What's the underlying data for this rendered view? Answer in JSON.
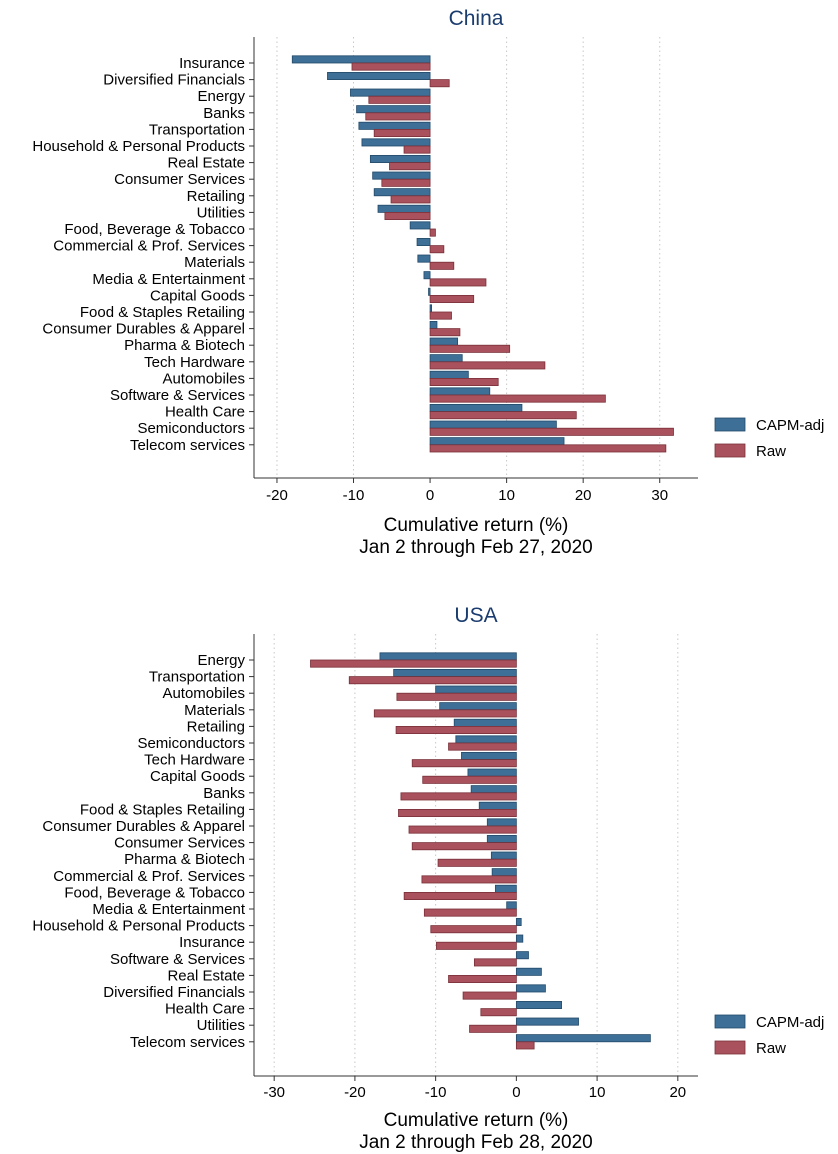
{
  "chart_data": [
    {
      "type": "bar",
      "orientation": "horizontal",
      "title": "China",
      "xlabel": "Cumulative return (%)",
      "subtitle": "Jan 2 through Feb 27, 2020",
      "xlim": [
        -23,
        35
      ],
      "xticks": [
        -20,
        -10,
        0,
        10,
        20,
        30
      ],
      "grid": "vertical dotted",
      "legend_position": "right",
      "colors": {
        "CAPM-adj": "#3d6f97",
        "Raw": "#a9525d"
      },
      "categories": [
        "Insurance",
        "Diversified Financials",
        "Energy",
        "Banks",
        "Transportation",
        "Household & Personal Products",
        "Real Estate",
        "Consumer Services",
        "Retailing",
        "Utilities",
        "Food, Beverage & Tobacco",
        "Commercial & Prof. Services",
        "Materials",
        "Media & Entertainment",
        "Capital Goods",
        "Food & Staples Retailing",
        "Consumer Durables & Apparel",
        "Pharma & Biotech",
        "Tech Hardware",
        "Automobiles",
        "Software & Services",
        "Health Care",
        "Semiconductors",
        "Telecom services"
      ],
      "series": [
        {
          "name": "CAPM-adj",
          "values": [
            -18.0,
            -13.4,
            -10.4,
            -9.6,
            -9.3,
            -8.9,
            -7.8,
            -7.5,
            -7.3,
            -6.8,
            -2.6,
            -1.7,
            -1.6,
            -0.8,
            -0.2,
            0.2,
            0.9,
            3.6,
            4.2,
            5.0,
            7.8,
            12.0,
            16.5,
            17.5
          ]
        },
        {
          "name": "Raw",
          "values": [
            -10.2,
            2.5,
            -8.0,
            -8.4,
            -7.3,
            -3.4,
            -5.3,
            -6.3,
            -5.1,
            -5.9,
            0.7,
            1.8,
            3.1,
            7.3,
            5.7,
            2.8,
            3.9,
            10.4,
            15.0,
            8.9,
            22.9,
            19.1,
            31.8,
            30.8
          ]
        }
      ]
    },
    {
      "type": "bar",
      "orientation": "horizontal",
      "title": "USA",
      "xlabel": "Cumulative return (%)",
      "subtitle": "Jan 2 through Feb 28, 2020",
      "xlim": [
        -32.5,
        22.5
      ],
      "xticks": [
        -30,
        -20,
        -10,
        0,
        10,
        20
      ],
      "grid": "vertical dotted",
      "legend_position": "right",
      "colors": {
        "CAPM-adj": "#3d6f97",
        "Raw": "#a9525d"
      },
      "categories": [
        "Energy",
        "Transportation",
        "Automobiles",
        "Materials",
        "Retailing",
        "Semiconductors",
        "Tech Hardware",
        "Capital Goods",
        "Banks",
        "Food & Staples Retailing",
        "Consumer Durables & Apparel",
        "Consumer Services",
        "Pharma & Biotech",
        "Commercial & Prof. Services",
        "Food, Beverage & Tobacco",
        "Media & Entertainment",
        "Household & Personal Products",
        "Insurance",
        "Software & Services",
        "Real Estate",
        "Diversified Financials",
        "Health Care",
        "Utilities",
        "Telecom services"
      ],
      "series": [
        {
          "name": "CAPM-adj",
          "values": [
            -16.9,
            -15.2,
            -10.0,
            -9.5,
            -7.7,
            -7.5,
            -6.8,
            -6.0,
            -5.6,
            -4.6,
            -3.6,
            -3.6,
            -3.1,
            -3.0,
            -2.6,
            -1.2,
            0.6,
            0.8,
            1.5,
            3.1,
            3.6,
            5.6,
            7.7,
            16.6
          ]
        },
        {
          "name": "Raw",
          "values": [
            -25.5,
            -20.7,
            -14.8,
            -17.6,
            -14.9,
            -8.4,
            -12.9,
            -11.6,
            -14.3,
            -14.6,
            -13.3,
            -12.9,
            -9.7,
            -11.7,
            -13.9,
            -11.4,
            -10.6,
            -9.9,
            -5.2,
            -8.4,
            -6.6,
            -4.4,
            -5.8,
            2.2
          ]
        }
      ]
    }
  ]
}
